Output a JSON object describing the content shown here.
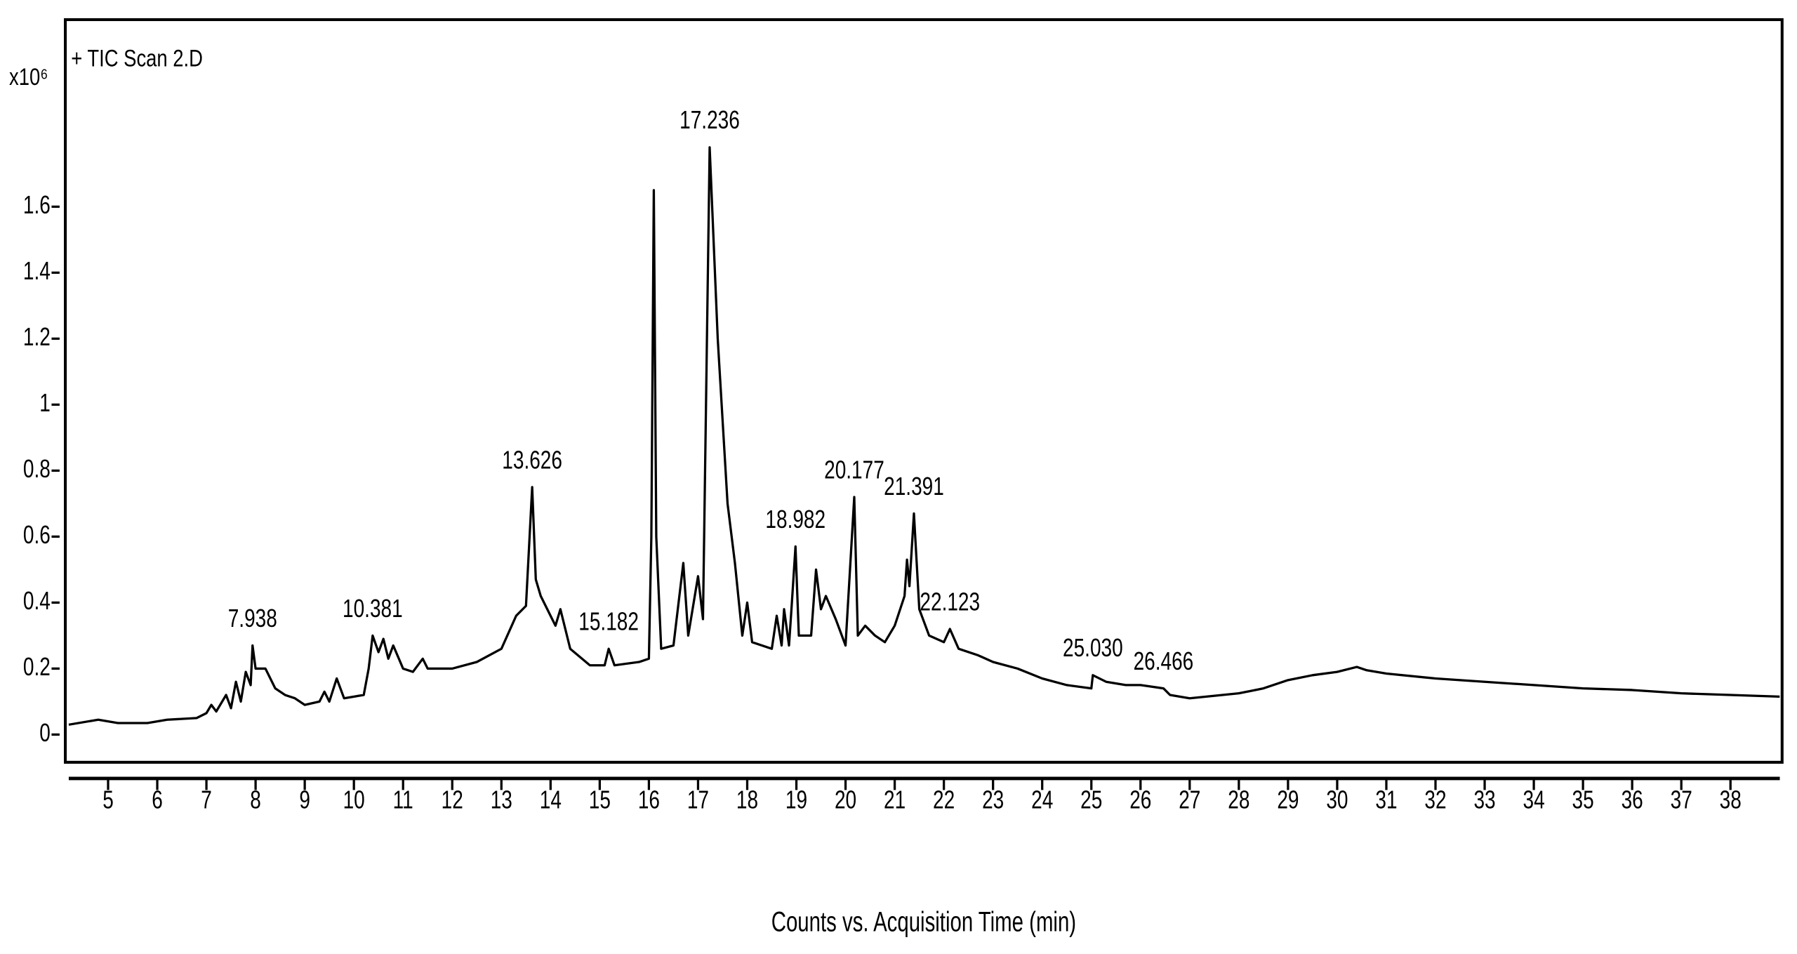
{
  "chart_data": {
    "type": "line",
    "title": "+ TIC Scan 2.D",
    "y_unit": "x10⁶",
    "x_label": "Counts vs. Acquisition Time (min)",
    "xlim": [
      4.13,
      39.05
    ],
    "ylim": [
      -0.084,
      2.167
    ],
    "xticks": [
      5,
      6,
      7,
      8,
      9,
      10,
      11,
      12,
      13,
      14,
      15,
      16,
      17,
      18,
      19,
      20,
      21,
      22,
      23,
      24,
      25,
      26,
      27,
      28,
      29,
      30,
      31,
      32,
      33,
      34,
      35,
      36,
      37,
      38
    ],
    "yticks": [
      0,
      0.2,
      0.4,
      0.6,
      0.8,
      1,
      1.2,
      1.4,
      1.6
    ],
    "x": [
      4.2,
      4.8,
      5.2,
      5.8,
      6.2,
      6.8,
      7.0,
      7.1,
      7.2,
      7.4,
      7.5,
      7.6,
      7.7,
      7.8,
      7.9,
      7.938,
      8.0,
      8.2,
      8.4,
      8.6,
      8.8,
      9.0,
      9.3,
      9.4,
      9.5,
      9.65,
      9.8,
      10.2,
      10.3,
      10.381,
      10.5,
      10.6,
      10.7,
      10.8,
      11.0,
      11.2,
      11.4,
      11.5,
      12,
      12.5,
      13.0,
      13.3,
      13.5,
      13.626,
      13.7,
      13.8,
      14.0,
      14.1,
      14.2,
      14.4,
      14.8,
      15.1,
      15.182,
      15.3,
      15.8,
      16.0,
      16.05,
      16.1,
      16.15,
      16.25,
      16.5,
      16.7,
      16.8,
      17.0,
      17.1,
      17.236,
      17.4,
      17.6,
      17.75,
      17.9,
      18.0,
      18.1,
      18.5,
      18.6,
      18.7,
      18.75,
      18.85,
      18.9,
      18.982,
      19.05,
      19.3,
      19.4,
      19.5,
      19.6,
      19.8,
      20.0,
      20.177,
      20.25,
      20.4,
      20.6,
      20.8,
      21.0,
      21.2,
      21.25,
      21.3,
      21.391,
      21.5,
      21.7,
      22.0,
      22.123,
      22.3,
      22.7,
      23.0,
      23.5,
      24.0,
      24.5,
      25.0,
      25.03,
      25.3,
      25.7,
      26.0,
      26.466,
      26.6,
      27,
      28,
      28.5,
      29,
      29.5,
      30,
      30.4,
      30.6,
      31,
      32,
      33,
      34,
      35,
      36,
      37,
      38,
      39
    ],
    "series": [
      {
        "color": "#000000",
        "values": [
          0.03,
          0.045,
          0.035,
          0.035,
          0.045,
          0.05,
          0.065,
          0.09,
          0.07,
          0.12,
          0.08,
          0.16,
          0.1,
          0.19,
          0.15,
          0.27,
          0.2,
          0.2,
          0.14,
          0.12,
          0.11,
          0.09,
          0.1,
          0.13,
          0.1,
          0.17,
          0.11,
          0.12,
          0.2,
          0.3,
          0.25,
          0.29,
          0.23,
          0.27,
          0.2,
          0.19,
          0.23,
          0.2,
          0.2,
          0.22,
          0.26,
          0.36,
          0.39,
          0.75,
          0.47,
          0.42,
          0.36,
          0.33,
          0.38,
          0.26,
          0.21,
          0.21,
          0.26,
          0.21,
          0.22,
          0.23,
          0.6,
          1.65,
          0.6,
          0.26,
          0.27,
          0.52,
          0.3,
          0.48,
          0.35,
          1.78,
          1.2,
          0.7,
          0.52,
          0.3,
          0.4,
          0.28,
          0.26,
          0.36,
          0.27,
          0.38,
          0.27,
          0.38,
          0.57,
          0.3,
          0.3,
          0.5,
          0.38,
          0.42,
          0.35,
          0.27,
          0.72,
          0.3,
          0.33,
          0.3,
          0.28,
          0.33,
          0.42,
          0.53,
          0.45,
          0.67,
          0.38,
          0.3,
          0.28,
          0.32,
          0.26,
          0.24,
          0.22,
          0.2,
          0.17,
          0.15,
          0.14,
          0.18,
          0.16,
          0.15,
          0.15,
          0.14,
          0.12,
          0.11,
          0.125,
          0.14,
          0.165,
          0.18,
          0.19,
          0.205,
          0.195,
          0.185,
          0.17,
          0.16,
          0.15,
          0.14,
          0.135,
          0.125,
          0.12,
          0.115
        ]
      }
    ],
    "annotations": [
      {
        "value": 7.938,
        "label": "7.938"
      },
      {
        "value": 10.381,
        "label": "10.381"
      },
      {
        "value": 13.626,
        "label": "13.626"
      },
      {
        "value": 15.182,
        "label": "15.182"
      },
      {
        "value": 17.236,
        "label": "17.236"
      },
      {
        "value": 18.982,
        "label": "18.982"
      },
      {
        "value": 20.177,
        "label": "20.177"
      },
      {
        "value": 21.391,
        "label": "21.391"
      },
      {
        "value": 22.123,
        "label": "22.123"
      },
      {
        "value": 25.03,
        "label": "25.030"
      },
      {
        "value": 26.466,
        "label": "26.466"
      }
    ]
  }
}
